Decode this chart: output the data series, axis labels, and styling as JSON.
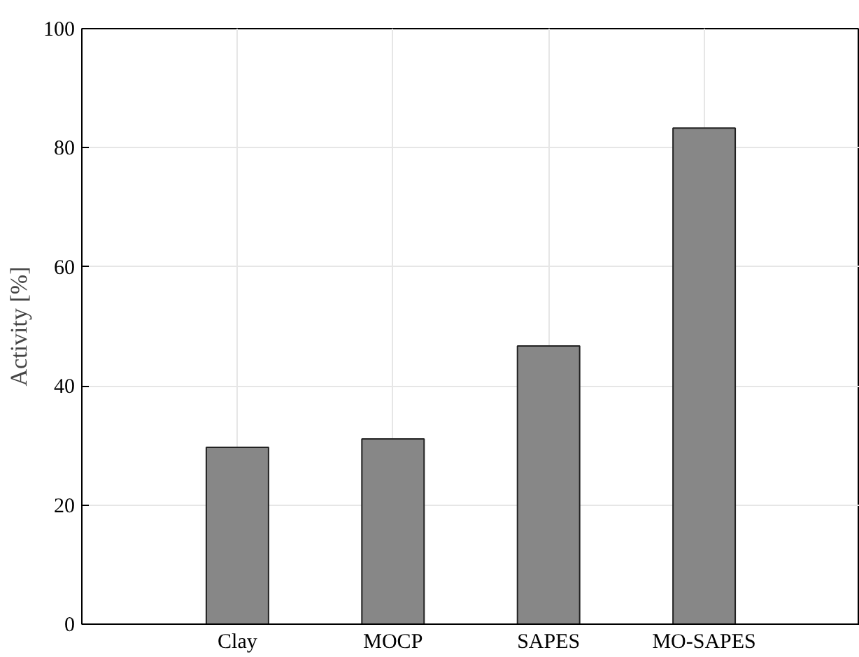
{
  "chart_data": {
    "type": "bar",
    "ylabel": "Activity [%]",
    "categories": [
      "Clay",
      "MOCP",
      "SAPES",
      "MO-SAPES"
    ],
    "values": [
      29.7,
      31.1,
      46.7,
      83.3
    ],
    "color": "#878787",
    "ylim": [
      0,
      100
    ],
    "yticks": [
      0,
      20,
      40,
      60,
      80,
      100
    ],
    "grid": true
  }
}
